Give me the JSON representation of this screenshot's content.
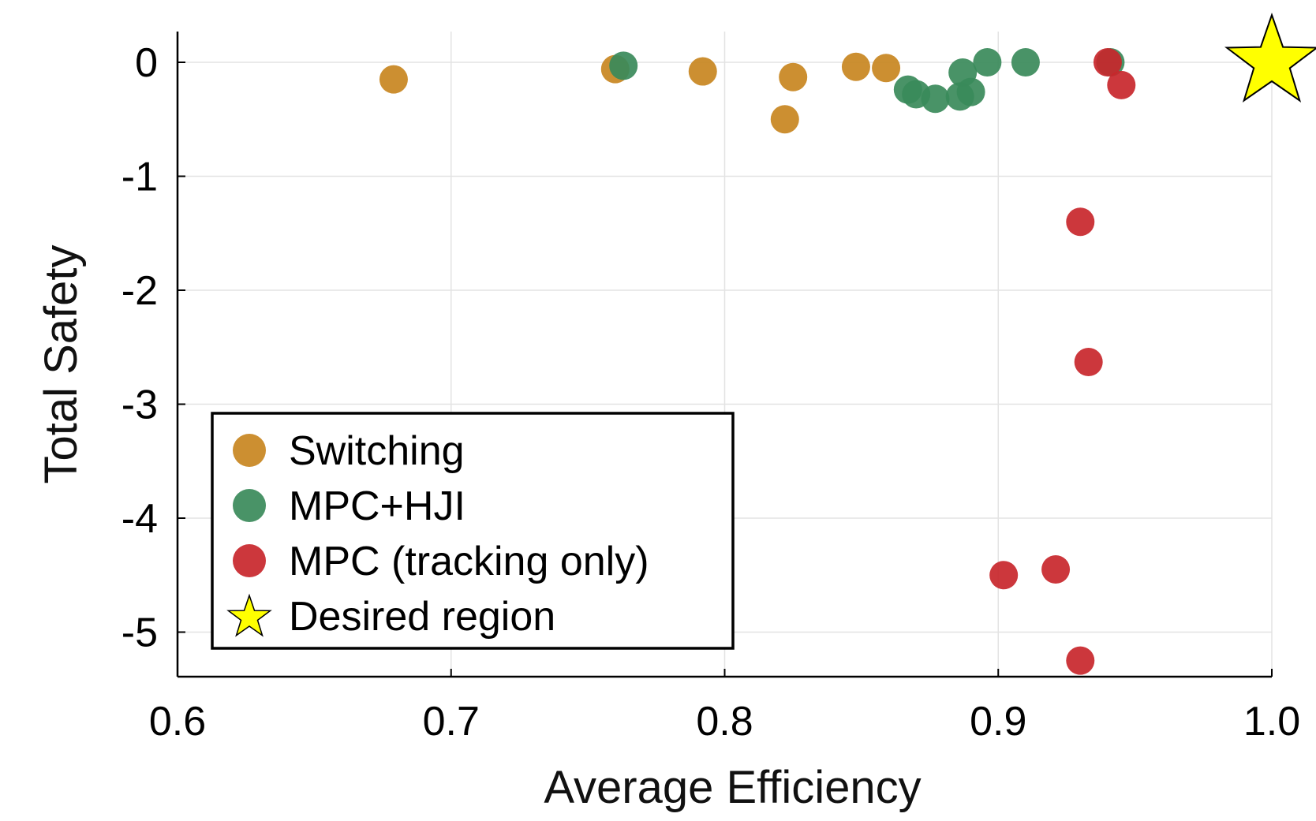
{
  "chart_data": {
    "type": "scatter",
    "xlabel": "Average Efficiency",
    "ylabel": "Total Safety",
    "xlim": [
      0.6,
      1.0
    ],
    "ylim": [
      -5.4,
      0.3
    ],
    "xticks": [
      0.6,
      0.7,
      0.8,
      0.9,
      1.0
    ],
    "xtick_labels": [
      "0.6",
      "0.7",
      "0.8",
      "0.9",
      "1.0"
    ],
    "yticks": [
      0,
      -1,
      -2,
      -3,
      -4,
      -5
    ],
    "ytick_labels": [
      "0",
      "-1",
      "-2",
      "-3",
      "-4",
      "-5"
    ],
    "grid": true,
    "legend_position": "bottom-left",
    "series": [
      {
        "name": "Switching",
        "color": "#c8861f",
        "marker": "circle",
        "points": [
          [
            0.679,
            -0.15
          ],
          [
            0.76,
            -0.06
          ],
          [
            0.792,
            -0.08
          ],
          [
            0.825,
            -0.13
          ],
          [
            0.822,
            -0.5
          ],
          [
            0.848,
            -0.04
          ],
          [
            0.859,
            -0.05
          ]
        ]
      },
      {
        "name": "MPC+HJI",
        "color": "#3a8a5a",
        "marker": "circle",
        "points": [
          [
            0.763,
            -0.03
          ],
          [
            0.867,
            -0.24
          ],
          [
            0.87,
            -0.28
          ],
          [
            0.877,
            -0.32
          ],
          [
            0.886,
            -0.3
          ],
          [
            0.887,
            -0.09
          ],
          [
            0.89,
            -0.26
          ],
          [
            0.896,
            0.0
          ],
          [
            0.91,
            0.0
          ],
          [
            0.941,
            0.0
          ]
        ]
      },
      {
        "name": "MPC (tracking only)",
        "color": "#c8262b",
        "marker": "circle",
        "points": [
          [
            0.94,
            0.0
          ],
          [
            0.945,
            -0.2
          ],
          [
            0.93,
            -1.4
          ],
          [
            0.933,
            -2.63
          ],
          [
            0.902,
            -4.5
          ],
          [
            0.921,
            -4.45
          ],
          [
            0.93,
            -5.25
          ]
        ]
      },
      {
        "name": "Desired region",
        "color": "#ffff00",
        "marker": "star",
        "points": [
          [
            1.0,
            0.0
          ]
        ]
      }
    ]
  }
}
